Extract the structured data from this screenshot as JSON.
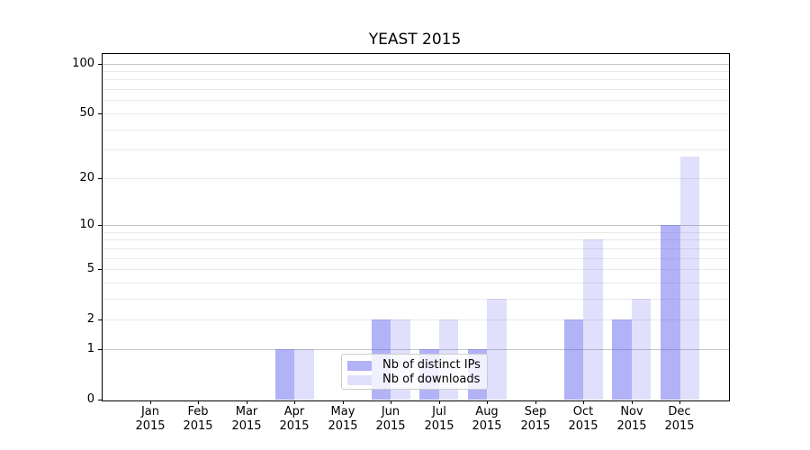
{
  "chart_data": {
    "type": "bar",
    "title": "YEAST 2015",
    "year": "2015",
    "categories": [
      "Jan",
      "Feb",
      "Mar",
      "Apr",
      "May",
      "Jun",
      "Jul",
      "Aug",
      "Sep",
      "Oct",
      "Nov",
      "Dec"
    ],
    "series": [
      {
        "name": "Nb of distinct IPs",
        "color": "rgba(85,85,238,0.45)",
        "values": [
          0,
          0,
          0,
          1,
          0,
          2,
          1,
          1,
          0,
          2,
          2,
          10
        ]
      },
      {
        "name": "Nb of downloads",
        "color": "rgba(85,85,238,0.18)",
        "values": [
          0,
          0,
          0,
          1,
          0,
          2,
          2,
          3,
          0,
          8,
          3,
          27
        ]
      }
    ],
    "xlabel": "",
    "ylabel": "",
    "yscale": "log10(value+1)",
    "ylim": [
      0,
      116
    ],
    "yticks": [
      0,
      1,
      2,
      5,
      10,
      20,
      50,
      100
    ],
    "major_gridlines": [
      1,
      10,
      100
    ],
    "minor_gridlines": [
      2,
      3,
      4,
      5,
      6,
      7,
      8,
      9,
      20,
      30,
      40,
      50,
      60,
      70,
      80,
      90
    ],
    "grid": "on",
    "legend_position": "lower center",
    "colors": {
      "grid_major": "#c4c4c4",
      "grid_minor": "#e9e9e9",
      "spine": "#000000",
      "text": "#000000"
    }
  }
}
